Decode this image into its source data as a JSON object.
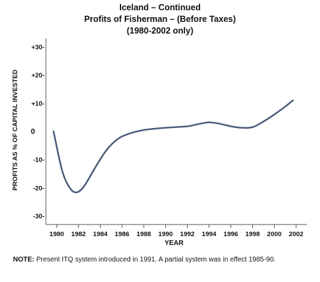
{
  "chart_data": {
    "type": "line",
    "title": "Iceland – Continued",
    "subtitle": "Profits of Fisherman – (Before Taxes)",
    "subtitle2": "(1980-2002 only)",
    "xlabel": "YEAR",
    "ylabel": "PROFITS AS % OF CAPITAL INVESTED",
    "xlim": [
      1979,
      2003
    ],
    "ylim": [
      -33,
      33
    ],
    "x_ticks": [
      1980,
      1982,
      1984,
      1986,
      1988,
      1990,
      1992,
      1994,
      1996,
      1998,
      2000,
      2002
    ],
    "y_ticks": [
      {
        "value": 30,
        "label": "+30-"
      },
      {
        "value": 20,
        "label": "+20-"
      },
      {
        "value": 10,
        "label": "+10-"
      },
      {
        "value": 0,
        "label": "0"
      },
      {
        "value": -10,
        "label": "-10-"
      },
      {
        "value": -20,
        "label": "-20-"
      },
      {
        "value": -30,
        "label": "-30-"
      }
    ],
    "grid": false,
    "line_color": "#4a5a78",
    "series": [
      {
        "x": [
          1979.7,
          1980.5,
          1981.2,
          1981.8,
          1982.5,
          1983.5,
          1984.5,
          1985.5,
          1986.5,
          1988,
          1990,
          1992,
          1993,
          1994,
          1995,
          1996,
          1997,
          1998,
          1999,
          2000,
          2001,
          2001.7
        ],
        "values": [
          0,
          -14,
          -20,
          -21.6,
          -19.5,
          -13,
          -7,
          -3,
          -1,
          0.5,
          1.3,
          1.8,
          2.6,
          3.2,
          2.7,
          1.8,
          1.3,
          1.5,
          3.5,
          6,
          8.8,
          11
        ]
      }
    ]
  },
  "note": {
    "label": "NOTE:",
    "text": " Present ITQ system introduced in 1991.  A partial system was in effect 1985-90."
  }
}
